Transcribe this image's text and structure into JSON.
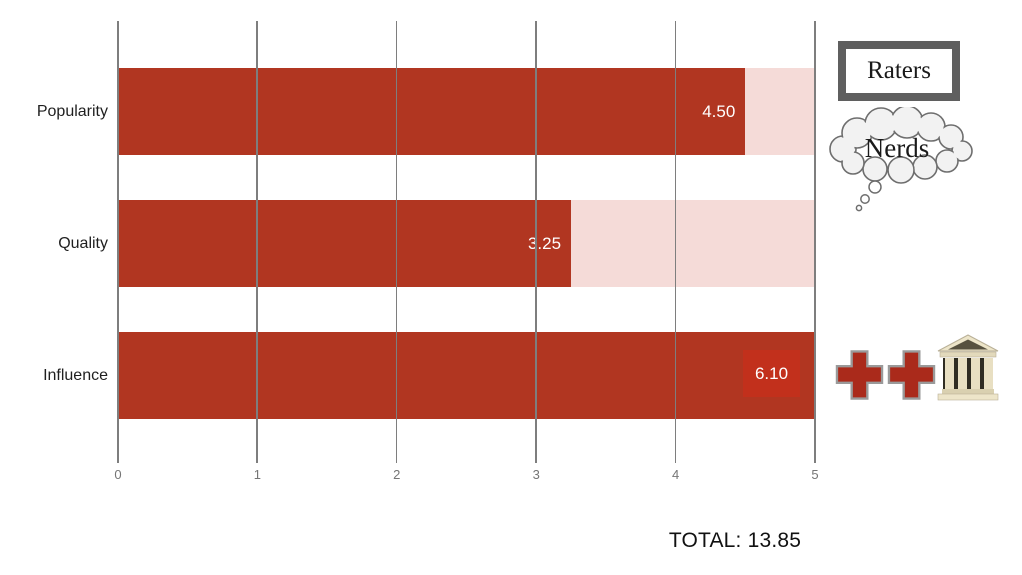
{
  "chart_data": {
    "type": "bar",
    "orientation": "horizontal",
    "categories": [
      "Popularity",
      "Quality",
      "Influence"
    ],
    "values": [
      4.5,
      3.25,
      6.1
    ],
    "value_labels": [
      "4.50",
      "3.25",
      "6.10"
    ],
    "xlim": [
      0,
      5
    ],
    "x_ticks": [
      "0",
      "1",
      "2",
      "3",
      "4",
      "5"
    ],
    "grid": "vertical",
    "legend_position": "none",
    "total_label": "TOTAL: 13.85",
    "colors": {
      "bar": "#B13621",
      "remainder": "#F5DBD8",
      "value_chip": "#C2301C",
      "grid_line": "#7E7E7E",
      "tick_label": "#757575",
      "category_label": "#1F1F1F",
      "value_text": "#FFFFFF"
    }
  },
  "annotations": {
    "raters": {
      "label": "Raters"
    },
    "nerds": {
      "label": "Nerds"
    },
    "icons": [
      "red-cross-icon",
      "red-cross-icon",
      "classical-building-icon"
    ]
  }
}
